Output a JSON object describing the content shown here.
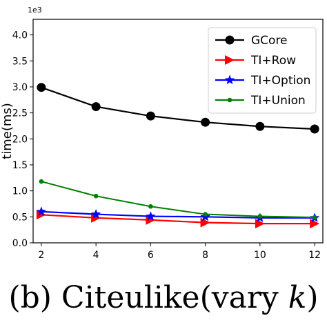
{
  "chart_data": {
    "type": "line",
    "ylabel": "time(ms)",
    "y_multiplier_label": "1e3",
    "x": [
      2,
      4,
      6,
      8,
      10,
      12
    ],
    "xlim": [
      1.7,
      12.3
    ],
    "ylim": [
      0,
      4.3
    ],
    "x_ticks": [
      "2",
      "4",
      "6",
      "8",
      "10",
      "12"
    ],
    "y_ticks": [
      "0.0",
      "0.5",
      "1.0",
      "1.5",
      "2.0",
      "2.5",
      "3.0",
      "3.5",
      "4.0"
    ],
    "legend_position": "top-right",
    "series": [
      {
        "name": "GCore",
        "color": "#000000",
        "marker": "circle",
        "values": [
          2.99,
          2.62,
          2.44,
          2.32,
          2.24,
          2.19
        ]
      },
      {
        "name": "TI+Row",
        "color": "#ff0000",
        "marker": "triangle-right",
        "values": [
          0.54,
          0.48,
          0.44,
          0.39,
          0.37,
          0.37
        ]
      },
      {
        "name": "TI+Option",
        "color": "#0000ff",
        "marker": "star",
        "values": [
          0.6,
          0.55,
          0.51,
          0.5,
          0.48,
          0.48
        ]
      },
      {
        "name": "TI+Union",
        "color": "#008000",
        "marker": "dot",
        "values": [
          1.18,
          0.9,
          0.7,
          0.55,
          0.51,
          0.49
        ]
      }
    ]
  },
  "caption": {
    "prefix": "(b) Citeulike(vary ",
    "symbol": "k",
    "suffix": ")"
  }
}
